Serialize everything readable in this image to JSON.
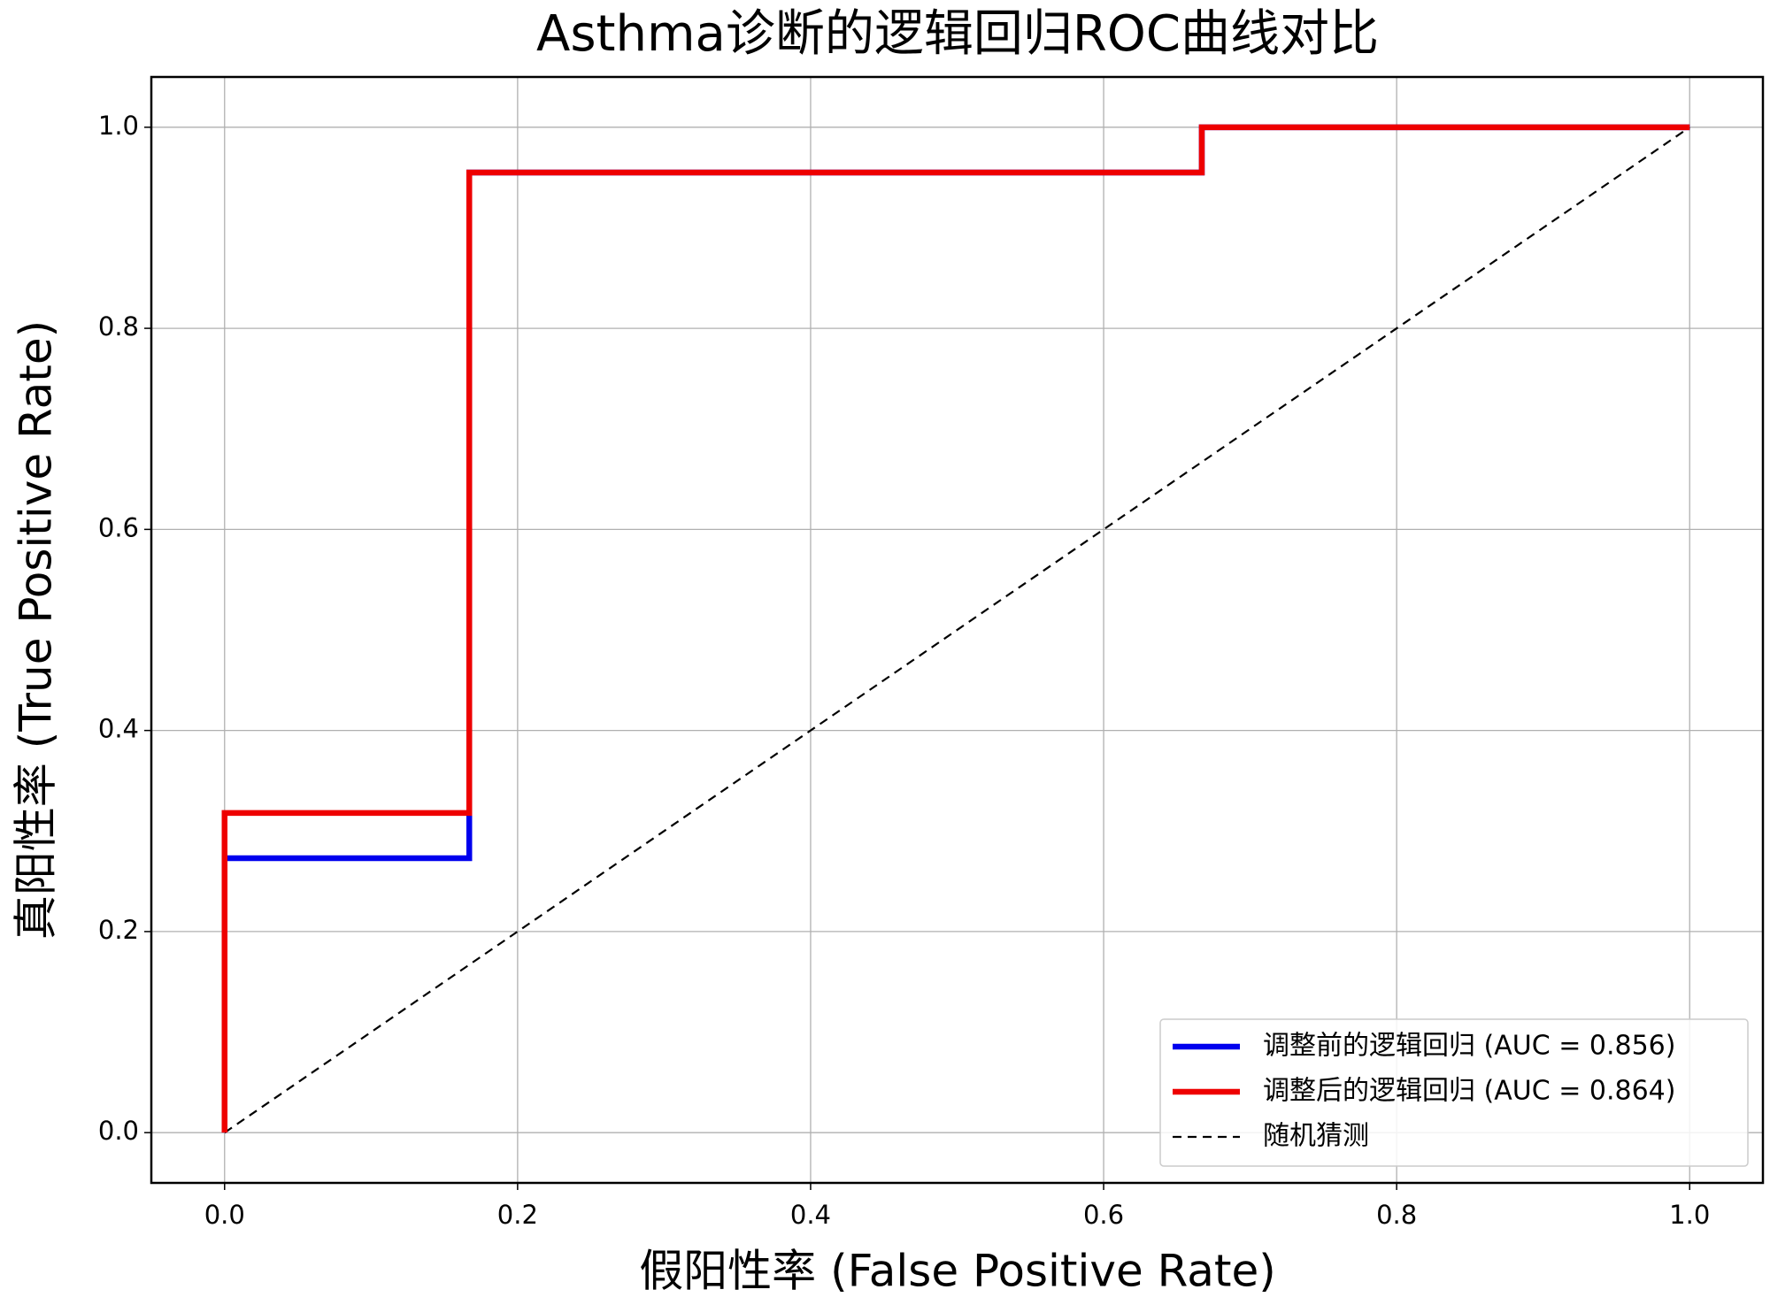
{
  "chart_data": {
    "type": "line",
    "title": "Asthma诊断的逻辑回归ROC曲线对比",
    "xlabel": "假阳性率 (False Positive Rate)",
    "ylabel": "真阳性率 (True Positive Rate)",
    "xlim": [
      -0.05,
      1.05
    ],
    "ylim": [
      -0.05,
      1.05
    ],
    "xticks": [
      {
        "value": 0,
        "label": "0.0"
      },
      0.2,
      0.4,
      0.6,
      0.8,
      {
        "value": 1,
        "label": "1.0"
      }
    ],
    "yticks": [
      {
        "value": 0,
        "label": "0.0"
      },
      0.2,
      0.4,
      0.6,
      0.8,
      {
        "value": 1,
        "label": "1.0"
      }
    ],
    "grid": true,
    "legend": "lower right",
    "series": [
      {
        "name": "调整前的逻辑回归 (AUC = 0.856)",
        "color": "#0000ee",
        "style": "solid",
        "x": [
          0,
          0,
          0.167,
          0.167,
          0.667,
          0.667,
          1
        ],
        "values": [
          0,
          0.273,
          0.273,
          0.955,
          0.955,
          1,
          1
        ]
      },
      {
        "name": "调整后的逻辑回归 (AUC = 0.864)",
        "color": "#ee0000",
        "style": "solid",
        "x": [
          0,
          0,
          0.167,
          0.167,
          0.667,
          0.667,
          1
        ],
        "values": [
          0,
          0.318,
          0.318,
          0.955,
          0.955,
          1,
          1
        ]
      },
      {
        "name": "随机猜测",
        "color": "#000000",
        "style": "dashed",
        "x": [
          0,
          1
        ],
        "values": [
          0,
          1
        ]
      }
    ]
  }
}
